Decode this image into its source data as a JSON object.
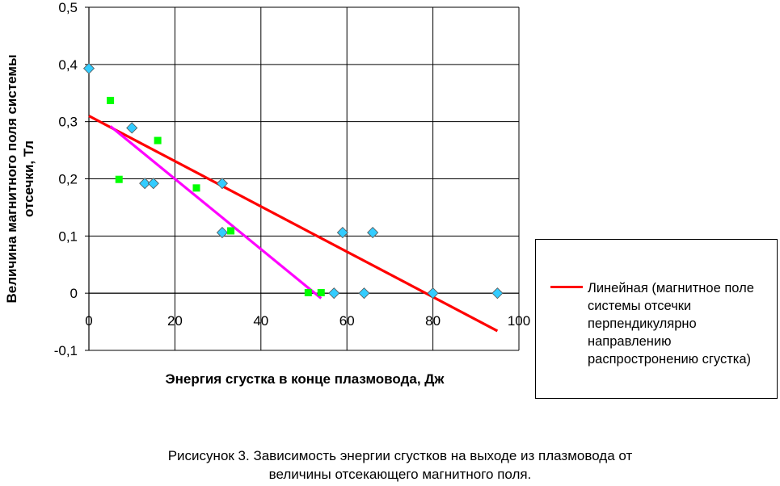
{
  "chart_data": {
    "type": "scatter",
    "xlabel": "Энергия сгустка в конце плазмовода, Дж",
    "ylabel_lines": [
      "Величина магнитного поля системы",
      "отсечки, Тл"
    ],
    "xlim": [
      0,
      100
    ],
    "ylim": [
      -0.1,
      0.5
    ],
    "x_ticks": [
      "0",
      "20",
      "40",
      "60",
      "80",
      "100"
    ],
    "y_ticks": [
      "-0,1",
      "0",
      "0,1",
      "0,2",
      "0,3",
      "0,4",
      "0,5"
    ],
    "grid": true,
    "series": [
      {
        "marker": "diamond",
        "color": "#33ccff",
        "points": [
          [
            0,
            0.393
          ],
          [
            10,
            0.289
          ],
          [
            13,
            0.192
          ],
          [
            15,
            0.192
          ],
          [
            31,
            0.192
          ],
          [
            31,
            0.106
          ],
          [
            57,
            0.0
          ],
          [
            59,
            0.106
          ],
          [
            64,
            0.0
          ],
          [
            66,
            0.106
          ],
          [
            80,
            0.0
          ],
          [
            95,
            0.0
          ]
        ]
      },
      {
        "marker": "square",
        "color": "#00ff00",
        "points": [
          [
            5,
            0.337
          ],
          [
            7,
            0.199
          ],
          [
            16,
            0.267
          ],
          [
            25,
            0.184
          ],
          [
            33,
            0.109
          ],
          [
            51,
            0.001
          ],
          [
            54,
            0.001
          ]
        ]
      }
    ],
    "lines": [
      {
        "name": "Линейная (магнитное поле системы отсечки перпендикулярно направлению распростронению сгустка)",
        "color": "#ff0000",
        "from": [
          0,
          0.31
        ],
        "to": [
          95,
          -0.066
        ]
      },
      {
        "color": "#ff00ff",
        "from": [
          5,
          0.292
        ],
        "to": [
          54,
          -0.009
        ]
      }
    ],
    "legend_position": "right"
  },
  "legend": {
    "lines": [
      "Линейная (магнитное поле",
      "системы отсечки",
      "перпендикулярно",
      "направлению",
      "распростронению сгустка)"
    ],
    "color": "#ff0000"
  },
  "caption": {
    "line1": "Рисисунок 3. Зависимость энергии сгустков на выходе из плазмовода от",
    "line2": "величины отсекающего магнитного поля."
  }
}
